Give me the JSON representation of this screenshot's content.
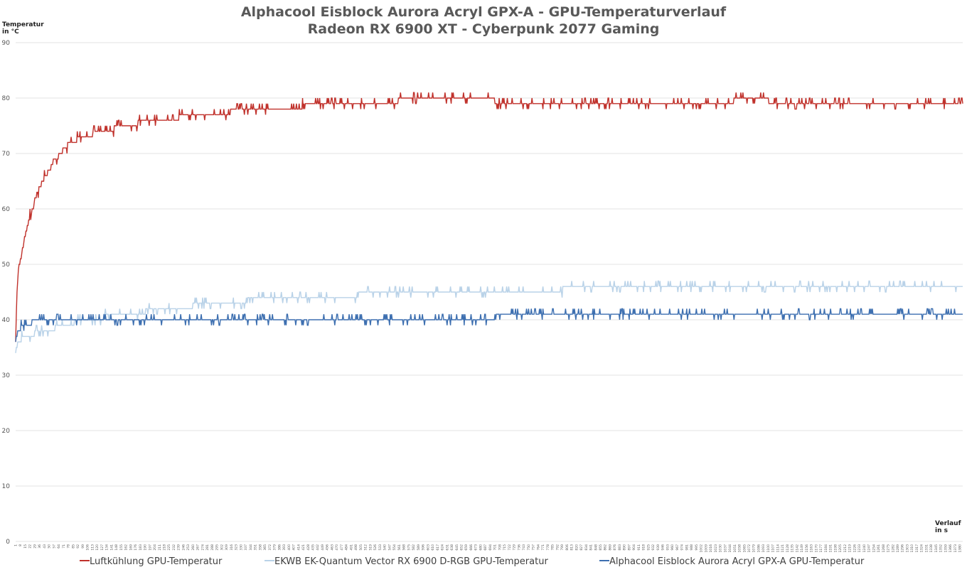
{
  "chart_data": {
    "type": "line",
    "title": "Alphacool Eisblock Aurora Acryl GPX-A - GPU-Temperaturverlauf",
    "subtitle": "Radeon RX 6900 XT - Cyberpunk 2077 Gaming",
    "ylabel": "Temperatur\nin °C",
    "xlabel": "Verlauf\nin s",
    "ylim": [
      0,
      90
    ],
    "yticks": [
      0,
      10,
      20,
      30,
      40,
      50,
      60,
      70,
      80,
      90
    ],
    "xlim": [
      1,
      1384
    ],
    "xtick_start": 1,
    "xtick_step": 7,
    "grid": true,
    "legend_position": "bottom",
    "series": [
      {
        "name": "Luftkühlung GPU-Temperatur",
        "color": "#c0312b",
        "points": [
          [
            1,
            36
          ],
          [
            3,
            45
          ],
          [
            5,
            49
          ],
          [
            10,
            52
          ],
          [
            15,
            55
          ],
          [
            20,
            58
          ],
          [
            25,
            60
          ],
          [
            30,
            62
          ],
          [
            40,
            65
          ],
          [
            50,
            67
          ],
          [
            60,
            69
          ],
          [
            70,
            70.5
          ],
          [
            80,
            72
          ],
          [
            100,
            73
          ],
          [
            130,
            74
          ],
          [
            160,
            75
          ],
          [
            200,
            76
          ],
          [
            240,
            76.5
          ],
          [
            280,
            77
          ],
          [
            350,
            78
          ],
          [
            420,
            78.5
          ],
          [
            500,
            79
          ],
          [
            560,
            79.5
          ],
          [
            700,
            79.5
          ],
          [
            850,
            79
          ],
          [
            1000,
            79
          ],
          [
            1050,
            79.5
          ],
          [
            1080,
            80
          ],
          [
            1100,
            79.5
          ],
          [
            1150,
            79
          ],
          [
            1300,
            79
          ],
          [
            1384,
            79
          ]
        ]
      },
      {
        "name": "EKWB EK-Quantum Vector RX 6900 D-RGB GPU-Temperatur",
        "color": "#b9d2e8",
        "points": [
          [
            1,
            34
          ],
          [
            5,
            36
          ],
          [
            15,
            37
          ],
          [
            30,
            37.5
          ],
          [
            60,
            38.5
          ],
          [
            100,
            40
          ],
          [
            160,
            41
          ],
          [
            220,
            42
          ],
          [
            300,
            43
          ],
          [
            380,
            44
          ],
          [
            500,
            44.5
          ],
          [
            600,
            45
          ],
          [
            800,
            45.5
          ],
          [
            1000,
            45.5
          ],
          [
            1200,
            46
          ],
          [
            1384,
            46
          ]
        ]
      },
      {
        "name": "Alphacool Eisblock Aurora Acryl GPX-A GPU-Temperatur",
        "color": "#3d6fb0",
        "points": [
          [
            1,
            36
          ],
          [
            5,
            38
          ],
          [
            12,
            39
          ],
          [
            25,
            39.5
          ],
          [
            50,
            40
          ],
          [
            300,
            40
          ],
          [
            500,
            40
          ],
          [
            700,
            40.5
          ],
          [
            1000,
            40.5
          ],
          [
            1100,
            41
          ],
          [
            1300,
            41
          ],
          [
            1384,
            40.5
          ]
        ]
      }
    ]
  }
}
